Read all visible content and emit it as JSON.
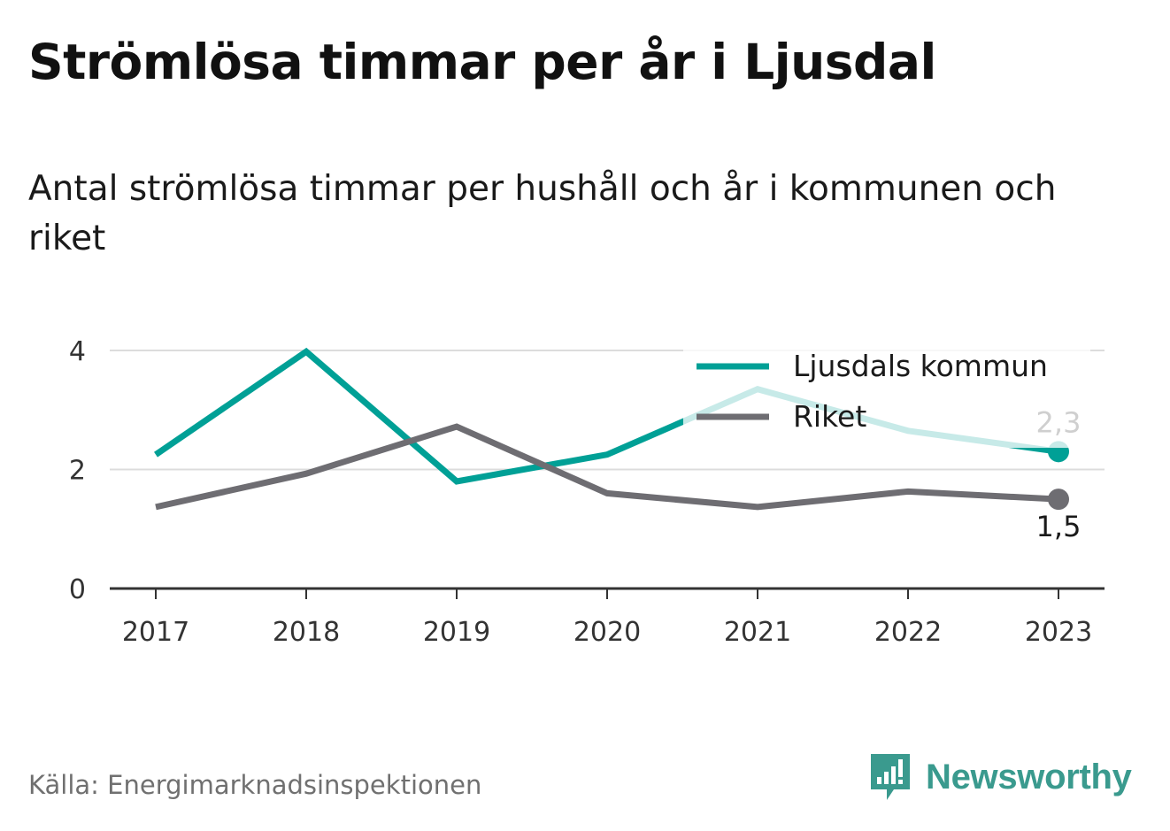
{
  "title": "Strömlösa timmar per år i Ljusdal",
  "subtitle": "Antal strömlösa timmar per hushåll och år i kommunen och riket",
  "source": "Källa: Energimarknadsinspektionen",
  "brand": {
    "name": "Newsworthy",
    "icon": "newsworthy-logo-icon",
    "color": "#3a9a8e"
  },
  "chart_data": {
    "type": "line",
    "x": [
      "2017",
      "2018",
      "2019",
      "2020",
      "2021",
      "2022",
      "2023"
    ],
    "ylim": [
      0,
      4
    ],
    "yticks": [
      "0",
      "2",
      "4"
    ],
    "grid": true,
    "legend_position": "top-right",
    "series": [
      {
        "name": "Ljusdals kommun",
        "color": "#00a096",
        "values": [
          2.25,
          3.98,
          1.8,
          2.25,
          3.35,
          2.65,
          2.3
        ],
        "end_label": "2,3"
      },
      {
        "name": "Riket",
        "color": "#6e6d72",
        "values": [
          1.37,
          1.93,
          2.72,
          1.6,
          1.37,
          1.63,
          1.5
        ],
        "end_label": "1,5"
      }
    ]
  }
}
